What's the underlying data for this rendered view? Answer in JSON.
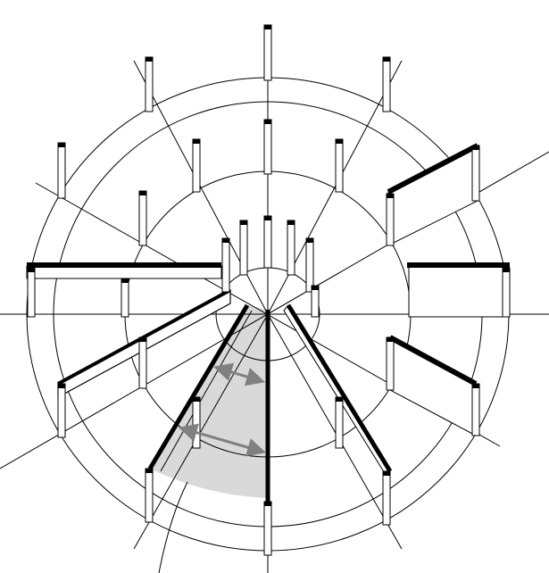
{
  "diagram": {
    "kind": "radial-plan-axonometric",
    "ring_count": 4,
    "spoke_count": 8,
    "colors": {
      "line": "#000000",
      "post_fill": "#ffffff",
      "shaded_sector": "#d9d9d9",
      "arrow": "#808080",
      "background": "#ffffff"
    },
    "icons": [
      "double-arrow",
      "leader-line"
    ]
  }
}
